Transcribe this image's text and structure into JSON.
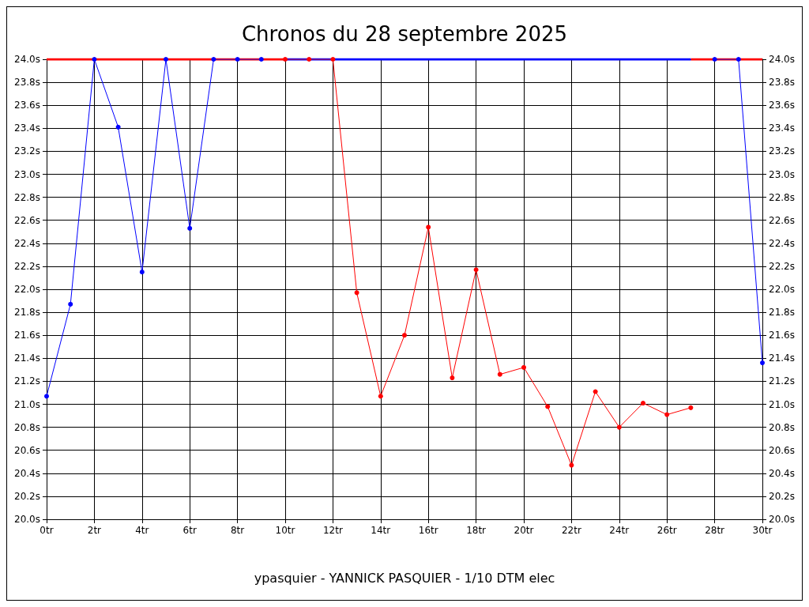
{
  "chart_data": {
    "type": "line",
    "title": "Chronos du 28 septembre 2025",
    "annotations": [
      "ypasquier - YANNICK PASQUIER - 1/10 DTM elec"
    ],
    "xlim": [
      0,
      30
    ],
    "xticks": [
      {
        "value": 0,
        "label": "0tr"
      },
      {
        "value": 2,
        "label": "2tr"
      },
      {
        "value": 4,
        "label": "4tr"
      },
      {
        "value": 6,
        "label": "6tr"
      },
      {
        "value": 8,
        "label": "8tr"
      },
      {
        "value": 10,
        "label": "10tr"
      },
      {
        "value": 12,
        "label": "12tr"
      },
      {
        "value": 14,
        "label": "14tr"
      },
      {
        "value": 16,
        "label": "16tr"
      },
      {
        "value": 18,
        "label": "18tr"
      },
      {
        "value": 20,
        "label": "20tr"
      },
      {
        "value": 22,
        "label": "22tr"
      },
      {
        "value": 24,
        "label": "24tr"
      },
      {
        "value": 26,
        "label": "26tr"
      },
      {
        "value": 28,
        "label": "28tr"
      },
      {
        "value": 30,
        "label": "30tr"
      }
    ],
    "ylim": [
      20,
      24
    ],
    "yticks": [
      {
        "value": 20,
        "label": "20.0s"
      },
      {
        "value": 20.2,
        "label": "20.2s"
      },
      {
        "value": 20.4,
        "label": "20.4s"
      },
      {
        "value": 20.6,
        "label": "20.6s"
      },
      {
        "value": 20.8,
        "label": "20.8s"
      },
      {
        "value": 21,
        "label": "21.0s"
      },
      {
        "value": 21.2,
        "label": "21.2s"
      },
      {
        "value": 21.4,
        "label": "21.4s"
      },
      {
        "value": 21.6,
        "label": "21.6s"
      },
      {
        "value": 21.8,
        "label": "21.8s"
      },
      {
        "value": 22,
        "label": "22.0s"
      },
      {
        "value": 22.2,
        "label": "22.2s"
      },
      {
        "value": 22.4,
        "label": "22.4s"
      },
      {
        "value": 22.6,
        "label": "22.6s"
      },
      {
        "value": 22.8,
        "label": "22.8s"
      },
      {
        "value": 23,
        "label": "23.0s"
      },
      {
        "value": 23.2,
        "label": "23.2s"
      },
      {
        "value": 23.4,
        "label": "23.4s"
      },
      {
        "value": 23.6,
        "label": "23.6s"
      },
      {
        "value": 23.8,
        "label": "23.8s"
      },
      {
        "value": 24,
        "label": "24.0s"
      }
    ],
    "y2lim": [
      20,
      24
    ],
    "y2ticks": [
      {
        "value": 20,
        "label": "20.0s"
      },
      {
        "value": 20.2,
        "label": "20.2s"
      },
      {
        "value": 20.4,
        "label": "20.4s"
      },
      {
        "value": 20.6,
        "label": "20.6s"
      },
      {
        "value": 20.8,
        "label": "20.8s"
      },
      {
        "value": 21,
        "label": "21.0s"
      },
      {
        "value": 21.2,
        "label": "21.2s"
      },
      {
        "value": 21.4,
        "label": "21.4s"
      },
      {
        "value": 21.6,
        "label": "21.6s"
      },
      {
        "value": 21.8,
        "label": "21.8s"
      },
      {
        "value": 22,
        "label": "22.0s"
      },
      {
        "value": 22.2,
        "label": "22.2s"
      },
      {
        "value": 22.4,
        "label": "22.4s"
      },
      {
        "value": 22.6,
        "label": "22.6s"
      },
      {
        "value": 22.8,
        "label": "22.8s"
      },
      {
        "value": 23,
        "label": "23.0s"
      },
      {
        "value": 23.2,
        "label": "23.2s"
      },
      {
        "value": 23.4,
        "label": "23.4s"
      },
      {
        "value": 23.6,
        "label": "23.6s"
      },
      {
        "value": 23.8,
        "label": "23.8s"
      },
      {
        "value": 24,
        "label": "24.0s"
      }
    ],
    "grid": true,
    "marker": "circle",
    "line_style": "solid",
    "series": [
      {
        "color": "#ff0000",
        "marker": "none",
        "x": [
          0,
          10
        ],
        "values": [
          24,
          24
        ]
      },
      {
        "color": "#ff0000",
        "marker": "none",
        "x": [
          27,
          30
        ],
        "values": [
          24,
          24
        ]
      },
      {
        "color": "#0000ff",
        "marker": "none",
        "x": [
          10,
          27
        ],
        "values": [
          24,
          24
        ]
      },
      {
        "color": "#0000ff",
        "x": [
          0,
          1,
          2,
          3,
          4,
          5,
          6,
          7,
          8,
          9
        ],
        "values": [
          21.07,
          21.87,
          24,
          23.41,
          22.15,
          24,
          22.53,
          24,
          24,
          24
        ]
      },
      {
        "color": "#0000ff",
        "x": [
          28,
          29,
          30
        ],
        "values": [
          24,
          24,
          21.36
        ]
      },
      {
        "color": "#ff0000",
        "x": [
          10,
          11,
          12,
          13,
          14,
          15,
          16,
          17,
          18,
          19,
          20,
          21,
          22,
          23,
          24,
          25,
          26,
          27
        ],
        "values": [
          24,
          24,
          24,
          21.97,
          21.07,
          21.6,
          22.54,
          21.23,
          22.17,
          21.26,
          21.32,
          20.98,
          20.47,
          21.11,
          20.8,
          21.01,
          20.91,
          20.97
        ]
      }
    ]
  }
}
